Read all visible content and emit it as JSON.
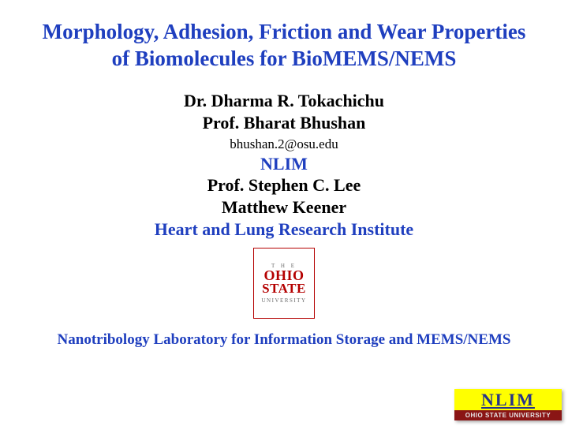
{
  "title": "Morphology, Adhesion, Friction and Wear Properties of Biomolecules for BioMEMS/NEMS",
  "authors": {
    "line1": "Dr. Dharma R. Tokachichu",
    "line2": "Prof. Bharat Bhushan",
    "email": "bhushan.2@osu.edu",
    "nlim": "NLIM",
    "line3": "Prof. Stephen C. Lee",
    "line4": "Matthew Keener",
    "institute": "Heart and Lung Research Institute"
  },
  "logo": {
    "the": "T H E",
    "ohio": "OHIO",
    "state": "STATE",
    "university": "UNIVERSITY"
  },
  "lab": "Nanotribology Laboratory for Information Storage and MEMS/NEMS",
  "badge": {
    "top": "NLIM",
    "bottom": "OHIO STATE UNIVERSITY"
  },
  "colors": {
    "title_blue": "#1f3fbf",
    "osu_red": "#b40000",
    "badge_yellow": "#ffff00",
    "badge_red": "#8a1515",
    "badge_text_blue": "#27338a"
  }
}
